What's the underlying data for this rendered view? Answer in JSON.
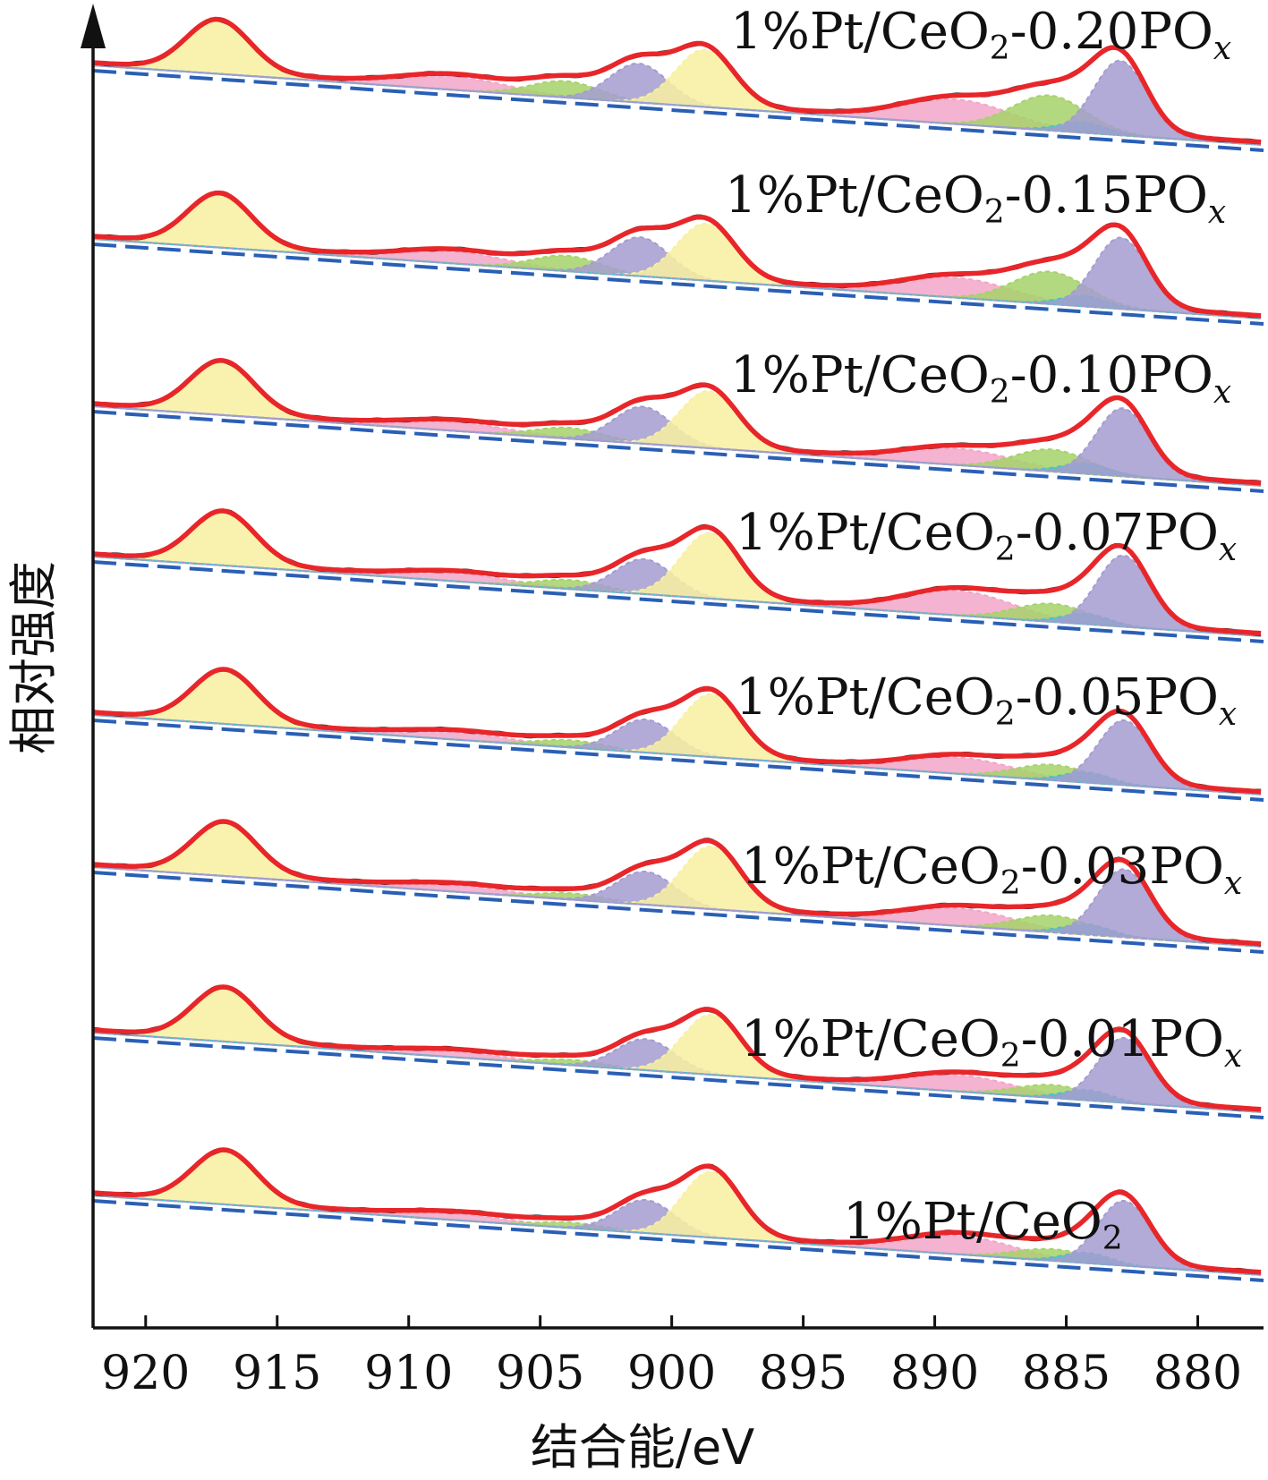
{
  "chart_data": {
    "type": "line",
    "title": "",
    "xlabel": "结合能/eV",
    "ylabel": "相对强度",
    "xlim": [
      922,
      877.5
    ],
    "x_reversed": true,
    "xticks": [
      920,
      915,
      910,
      905,
      900,
      895,
      890,
      885,
      880
    ],
    "y_ticks_shown": false,
    "grid": false,
    "legend": "none",
    "fit_component_colors": {
      "envelope": "#e8262a",
      "raw_data": "#222222",
      "background": "#2a5fb5",
      "yellow": "#f8f0a0",
      "blue": "#a49cd0",
      "green": "#a6d26a",
      "pink": "#f2a6c8",
      "teal": "#49c1c8"
    },
    "components": [
      {
        "color": "yellow",
        "center": 917.0,
        "width": 1.2,
        "height": 1.0
      },
      {
        "color": "pink",
        "center": 908.0,
        "width": 2.0,
        "height": 0.3
      },
      {
        "color": "green",
        "center": 903.8,
        "width": 1.3,
        "height": 0.35
      },
      {
        "color": "blue",
        "center": 901.0,
        "width": 1.1,
        "height": 0.75
      },
      {
        "color": "yellow",
        "center": 898.5,
        "width": 1.1,
        "height": 1.1
      },
      {
        "color": "pink",
        "center": 889.0,
        "width": 2.0,
        "height": 0.45
      },
      {
        "color": "green",
        "center": 885.5,
        "width": 1.4,
        "height": 0.5
      },
      {
        "color": "teal",
        "center": 884.2,
        "width": 0.9,
        "height": 0.2
      },
      {
        "color": "blue",
        "center": 882.8,
        "width": 1.0,
        "height": 1.25
      }
    ],
    "series": [
      {
        "name": "1%Pt/CeO2-0.20POx",
        "label_main": "1%Pt/CeO",
        "label_sub": "2",
        "label_tail": "-0.20PO",
        "label_x": "x",
        "scales": [
          1.0,
          0.85,
          0.9,
          1.0,
          1.0,
          1.05,
          1.35,
          1.0,
          1.15
        ],
        "shift": 0.25
      },
      {
        "name": "1%Pt/CeO2-0.15POx",
        "label_main": "1%Pt/CeO",
        "label_sub": "2",
        "label_tail": "-0.15PO",
        "label_x": "x",
        "scales": [
          1.0,
          0.75,
          0.85,
          1.0,
          1.0,
          0.85,
          1.25,
          1.0,
          1.1
        ],
        "shift": 0.2
      },
      {
        "name": "1%Pt/CeO2-0.10POx",
        "label_main": "1%Pt/CeO",
        "label_sub": "2",
        "label_tail": "-0.10PO",
        "label_x": "x",
        "scales": [
          1.0,
          0.55,
          0.6,
          0.95,
          1.0,
          0.7,
          0.85,
          1.0,
          1.05
        ],
        "shift": 0.1
      },
      {
        "name": "1%Pt/CeO2-0.07POx",
        "label_main": "1%Pt/CeO",
        "label_sub": "2",
        "label_tail": "-0.07PO",
        "label_x": "x",
        "scales": [
          1.0,
          0.5,
          0.5,
          0.9,
          1.15,
          1.05,
          0.7,
          1.0,
          1.1
        ],
        "shift": 0.05
      },
      {
        "name": "1%Pt/CeO2-0.05POx",
        "label_main": "1%Pt/CeO",
        "label_sub": "2",
        "label_tail": "-0.05PO",
        "label_x": "x",
        "scales": [
          1.0,
          0.45,
          0.4,
          0.85,
          1.1,
          0.7,
          0.6,
          1.0,
          1.0
        ],
        "shift": 0.0
      },
      {
        "name": "1%Pt/CeO2-0.03POx",
        "label_main": "1%Pt/CeO",
        "label_sub": "2",
        "label_tail": "-0.03PO",
        "label_x": "x",
        "scales": [
          1.0,
          0.4,
          0.35,
          0.85,
          1.1,
          0.75,
          0.65,
          1.0,
          1.05
        ],
        "shift": 0.0
      },
      {
        "name": "1%Pt/CeO2-0.01POx",
        "label_main": "1%Pt/CeO",
        "label_sub": "2",
        "label_tail": "-0.01PO",
        "label_x": "x",
        "scales": [
          1.0,
          0.35,
          0.3,
          0.8,
          1.05,
          0.7,
          0.5,
          1.0,
          1.0
        ],
        "shift": 0.0
      },
      {
        "name": "1%Pt/CeO2",
        "label_main": "1%Pt/CeO",
        "label_sub": "2",
        "label_tail": "",
        "label_x": "",
        "scales": [
          1.0,
          0.4,
          0.3,
          0.85,
          1.15,
          0.8,
          0.45,
          1.0,
          1.0
        ],
        "shift": 0.0
      }
    ]
  }
}
